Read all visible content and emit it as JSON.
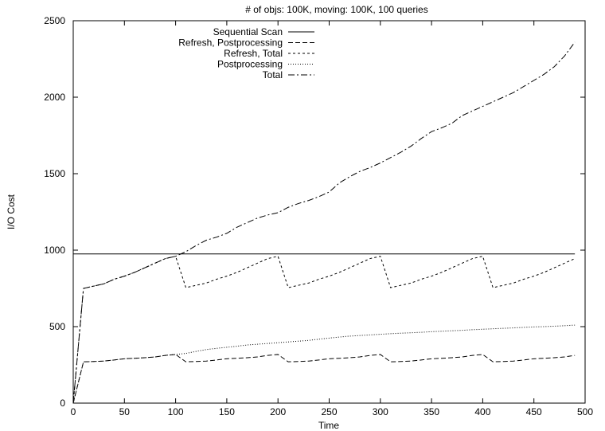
{
  "chart_data": {
    "type": "line",
    "title": "# of objs: 100K, moving: 100K, 100 queries",
    "xlabel": "Time",
    "ylabel": "I/O Cost",
    "xlim": [
      0,
      500
    ],
    "ylim": [
      0,
      2500
    ],
    "xticks": [
      0,
      50,
      100,
      150,
      200,
      250,
      300,
      350,
      400,
      450,
      500
    ],
    "yticks": [
      0,
      500,
      1000,
      1500,
      2000,
      2500
    ],
    "grid": false,
    "legend_position": "top-left",
    "series": [
      {
        "name": "Sequential Scan",
        "dash": "solid",
        "x": [
          0,
          490
        ],
        "y": [
          975,
          975
        ]
      },
      {
        "name": "Refresh, Postprocessing",
        "dash": "dashed",
        "x": [
          0,
          10,
          20,
          30,
          40,
          50,
          60,
          70,
          80,
          90,
          100,
          110,
          120,
          130,
          140,
          150,
          160,
          170,
          180,
          190,
          200,
          210,
          220,
          230,
          240,
          250,
          260,
          270,
          280,
          290,
          300,
          310,
          320,
          330,
          340,
          350,
          360,
          370,
          380,
          390,
          400,
          410,
          420,
          430,
          440,
          450,
          460,
          470,
          480,
          490
        ],
        "y": [
          0,
          270,
          272,
          275,
          282,
          290,
          293,
          297,
          302,
          312,
          318,
          270,
          272,
          275,
          282,
          290,
          293,
          297,
          302,
          312,
          318,
          270,
          272,
          275,
          282,
          290,
          293,
          297,
          302,
          312,
          318,
          270,
          272,
          275,
          282,
          290,
          293,
          297,
          302,
          312,
          318,
          270,
          272,
          275,
          282,
          290,
          293,
          297,
          302,
          312
        ]
      },
      {
        "name": "Refresh, Total",
        "dash": "dotted-dash",
        "x": [
          0,
          10,
          20,
          30,
          40,
          50,
          60,
          70,
          80,
          90,
          100,
          110,
          120,
          130,
          140,
          150,
          160,
          170,
          180,
          190,
          200,
          210,
          220,
          230,
          240,
          250,
          260,
          270,
          280,
          290,
          300,
          310,
          320,
          330,
          340,
          350,
          360,
          370,
          380,
          390,
          400,
          410,
          420,
          430,
          440,
          450,
          460,
          470,
          480,
          490
        ],
        "y": [
          0,
          750,
          765,
          780,
          810,
          830,
          855,
          885,
          915,
          945,
          960,
          755,
          770,
          785,
          810,
          830,
          855,
          885,
          915,
          945,
          960,
          755,
          770,
          785,
          810,
          830,
          855,
          885,
          915,
          945,
          960,
          755,
          770,
          785,
          810,
          830,
          855,
          885,
          915,
          945,
          960,
          755,
          770,
          785,
          810,
          830,
          855,
          885,
          915,
          945
        ]
      },
      {
        "name": "Postprocessing",
        "dash": "fine-dotted",
        "x": [
          0,
          10,
          20,
          30,
          40,
          50,
          60,
          70,
          80,
          90,
          100,
          110,
          120,
          130,
          140,
          150,
          160,
          170,
          180,
          190,
          200,
          210,
          220,
          230,
          240,
          250,
          260,
          270,
          280,
          290,
          300,
          310,
          320,
          330,
          340,
          350,
          360,
          370,
          380,
          390,
          400,
          410,
          420,
          430,
          440,
          450,
          460,
          470,
          480,
          490
        ],
        "y": [
          0,
          270,
          272,
          275,
          282,
          290,
          293,
          297,
          302,
          312,
          318,
          325,
          338,
          350,
          358,
          365,
          372,
          380,
          385,
          390,
          395,
          400,
          405,
          410,
          418,
          425,
          432,
          438,
          442,
          446,
          450,
          454,
          457,
          460,
          463,
          467,
          470,
          473,
          476,
          480,
          483,
          486,
          489,
          492,
          495,
          498,
          500,
          503,
          506,
          510
        ]
      },
      {
        "name": "Total",
        "dash": "dash-dot",
        "x": [
          0,
          10,
          20,
          30,
          40,
          50,
          60,
          70,
          80,
          90,
          100,
          110,
          120,
          130,
          140,
          150,
          160,
          170,
          180,
          190,
          200,
          210,
          220,
          230,
          240,
          250,
          260,
          270,
          280,
          290,
          300,
          310,
          320,
          330,
          340,
          350,
          360,
          370,
          380,
          390,
          400,
          410,
          420,
          430,
          440,
          450,
          460,
          470,
          480,
          490
        ],
        "y": [
          0,
          750,
          765,
          780,
          810,
          830,
          855,
          885,
          915,
          945,
          960,
          990,
          1030,
          1065,
          1085,
          1110,
          1150,
          1180,
          1210,
          1230,
          1245,
          1280,
          1305,
          1325,
          1350,
          1380,
          1440,
          1480,
          1515,
          1540,
          1570,
          1605,
          1640,
          1680,
          1730,
          1775,
          1800,
          1830,
          1880,
          1910,
          1940,
          1970,
          2000,
          2030,
          2070,
          2110,
          2150,
          2200,
          2270,
          2360
        ]
      }
    ]
  }
}
